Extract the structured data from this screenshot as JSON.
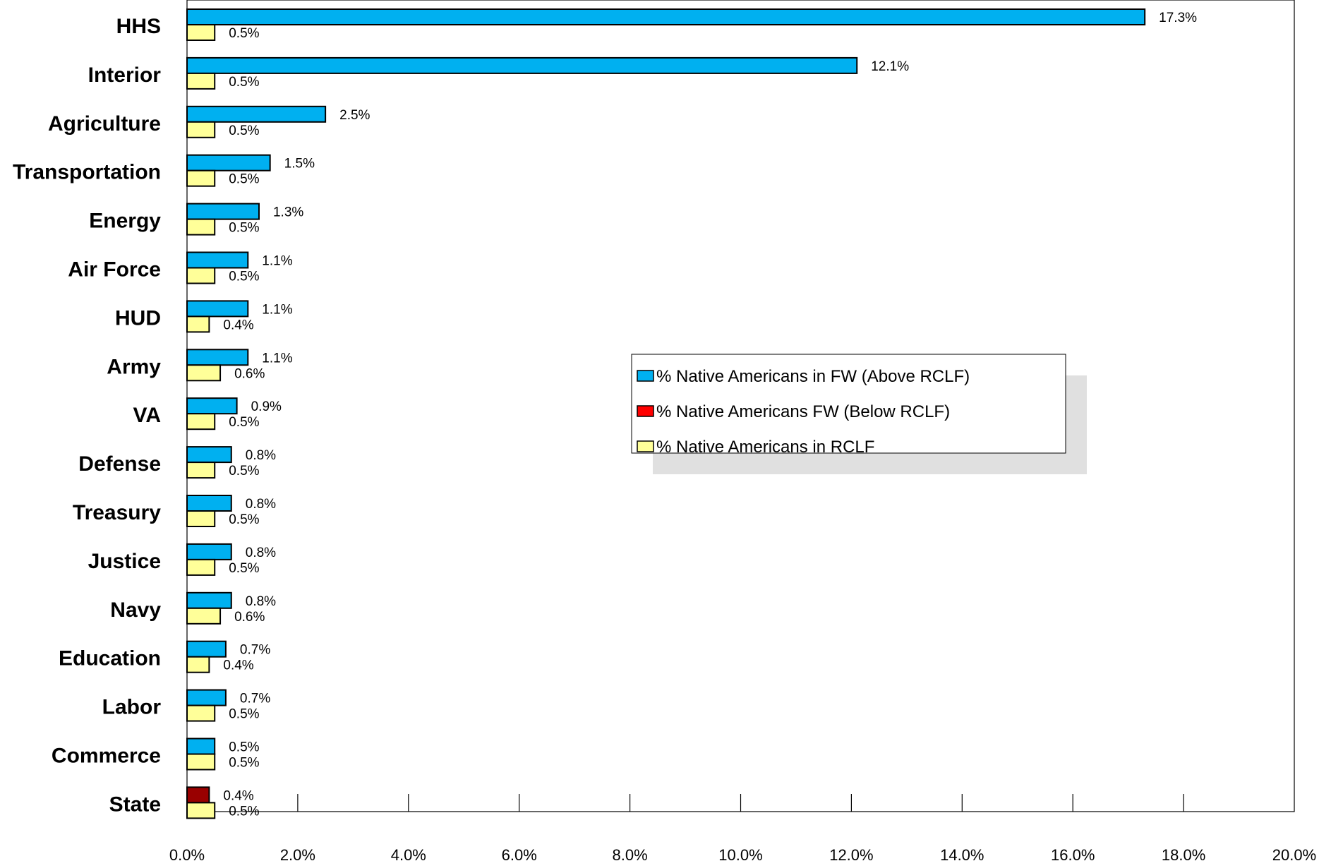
{
  "chart_data": {
    "type": "bar",
    "orientation": "horizontal",
    "categories": [
      "HHS",
      "Interior",
      "Agriculture",
      "Transportation",
      "Energy",
      "Air Force",
      "HUD",
      "Army",
      "VA",
      "Defense",
      "Treasury",
      "Justice",
      "Navy",
      "Education",
      "Labor",
      "Commerce",
      "State"
    ],
    "series": [
      {
        "name": "% Native Americans in FW (Above RCLF)",
        "color": "#00b0f0",
        "values": [
          17.3,
          12.1,
          2.5,
          1.5,
          1.3,
          1.1,
          1.1,
          1.1,
          0.9,
          0.8,
          0.8,
          0.8,
          0.8,
          0.7,
          0.7,
          0.5,
          null
        ],
        "labels": [
          "17.3%",
          "12.1%",
          "2.5%",
          "1.5%",
          "1.3%",
          "1.1%",
          "1.1%",
          "1.1%",
          "0.9%",
          "0.8%",
          "0.8%",
          "0.8%",
          "0.8%",
          "0.7%",
          "0.7%",
          "0.5%",
          ""
        ]
      },
      {
        "name": "% Native Americans FW  (Below RCLF)",
        "color": "#990000",
        "legend_color": "#ff0000",
        "values": [
          null,
          null,
          null,
          null,
          null,
          null,
          null,
          null,
          null,
          null,
          null,
          null,
          null,
          null,
          null,
          null,
          0.4
        ],
        "labels": [
          "",
          "",
          "",
          "",
          "",
          "",
          "",
          "",
          "",
          "",
          "",
          "",
          "",
          "",
          "",
          "",
          "0.4%"
        ]
      },
      {
        "name": "% Native Americans in RCLF",
        "color": "#ffff99",
        "values": [
          0.5,
          0.5,
          0.5,
          0.5,
          0.5,
          0.5,
          0.4,
          0.6,
          0.5,
          0.5,
          0.5,
          0.5,
          0.6,
          0.4,
          0.5,
          0.5,
          0.5
        ],
        "labels": [
          "0.5%",
          "0.5%",
          "0.5%",
          "0.5%",
          "0.5%",
          "0.5%",
          "0.4%",
          "0.6%",
          "0.5%",
          "0.5%",
          "0.5%",
          "0.5%",
          "0.6%",
          "0.4%",
          "0.5%",
          "0.5%",
          "0.5%"
        ]
      }
    ],
    "xlim": [
      0,
      20
    ],
    "xticks": [
      "0.0%",
      "2.0%",
      "4.0%",
      "6.0%",
      "8.0%",
      "10.0%",
      "12.0%",
      "14.0%",
      "16.0%",
      "18.0%",
      "20.0%"
    ],
    "grid": false,
    "legend_position": "center-right",
    "title": "",
    "xlabel": "",
    "ylabel": ""
  }
}
